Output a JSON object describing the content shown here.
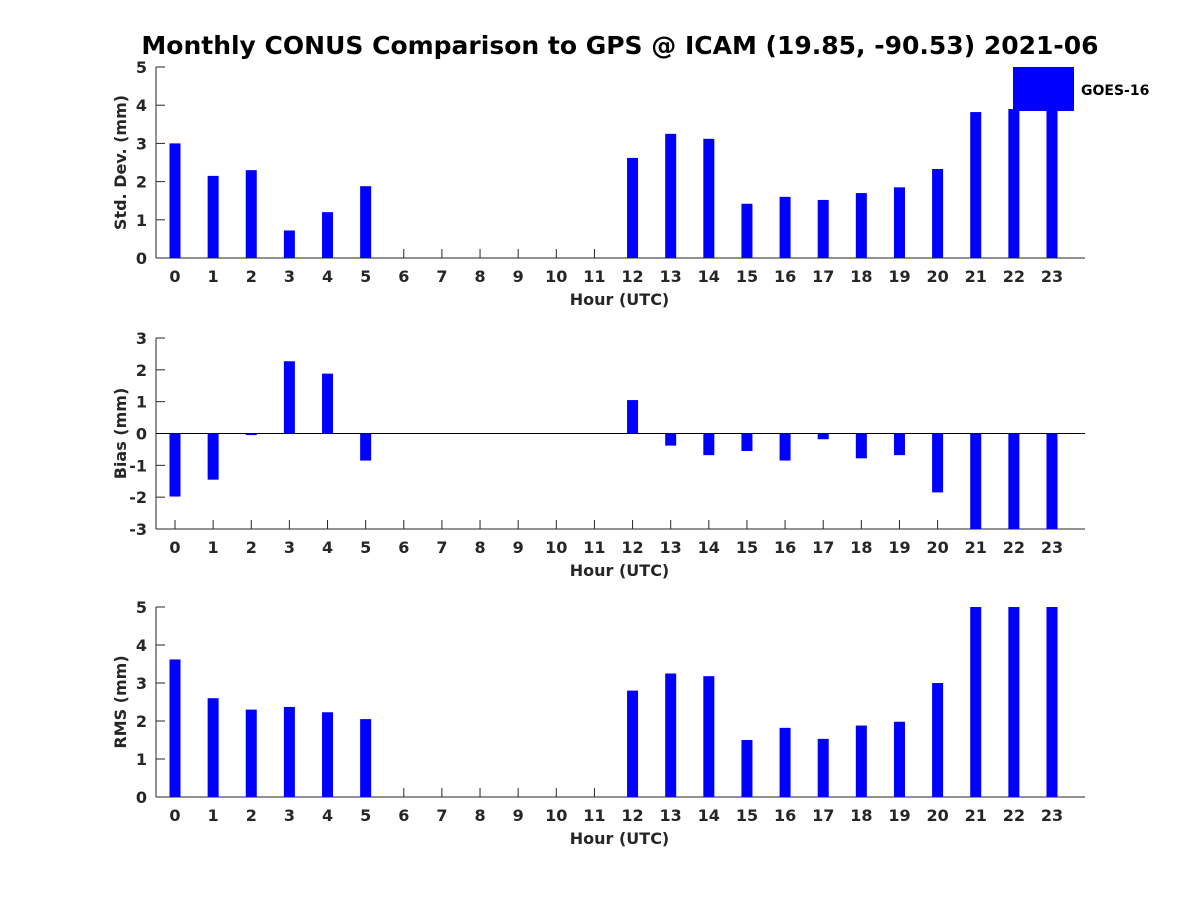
{
  "title": "Monthly CONUS Comparison to GPS @ ICAM (19.85, -90.53) 2021-06",
  "legend": {
    "label": "GOES-16",
    "color": "#0000ff",
    "placement": "top-right"
  },
  "bar_color": "#0000ff",
  "chart_data": [
    {
      "type": "bar",
      "categories": [
        "0",
        "1",
        "2",
        "3",
        "4",
        "5",
        "6",
        "7",
        "8",
        "9",
        "10",
        "11",
        "12",
        "13",
        "14",
        "15",
        "16",
        "17",
        "18",
        "19",
        "20",
        "21",
        "22",
        "23"
      ],
      "series": [
        {
          "name": "GOES-16",
          "values": [
            3.0,
            2.15,
            2.3,
            0.72,
            1.2,
            1.88,
            null,
            null,
            null,
            null,
            null,
            null,
            2.62,
            3.25,
            3.12,
            1.42,
            1.6,
            1.52,
            1.7,
            1.85,
            2.33,
            3.82,
            3.9,
            3.85
          ]
        }
      ],
      "xlabel": "Hour (UTC)",
      "ylabel": "Std. Dev. (mm)",
      "ylim": [
        0,
        5
      ],
      "yticks": [
        "0",
        "1",
        "2",
        "3",
        "4",
        "5"
      ]
    },
    {
      "type": "bar",
      "categories": [
        "0",
        "1",
        "2",
        "3",
        "4",
        "5",
        "6",
        "7",
        "8",
        "9",
        "10",
        "11",
        "12",
        "13",
        "14",
        "15",
        "16",
        "17",
        "18",
        "19",
        "20",
        "21",
        "22",
        "23"
      ],
      "series": [
        {
          "name": "GOES-16",
          "values": [
            -1.98,
            -1.45,
            -0.05,
            2.27,
            1.88,
            -0.85,
            null,
            null,
            null,
            null,
            null,
            null,
            1.05,
            -0.38,
            -0.68,
            -0.55,
            -0.85,
            -0.18,
            -0.78,
            -0.68,
            -1.85,
            -3.0,
            -3.0,
            -3.0
          ]
        }
      ],
      "xlabel": "Hour (UTC)",
      "ylabel": "Bias (mm)",
      "ylim": [
        -3,
        3
      ],
      "yticks": [
        "-3",
        "-2",
        "-1",
        "0",
        "1",
        "2",
        "3"
      ]
    },
    {
      "type": "bar",
      "categories": [
        "0",
        "1",
        "2",
        "3",
        "4",
        "5",
        "6",
        "7",
        "8",
        "9",
        "10",
        "11",
        "12",
        "13",
        "14",
        "15",
        "16",
        "17",
        "18",
        "19",
        "20",
        "21",
        "22",
        "23"
      ],
      "series": [
        {
          "name": "GOES-16",
          "values": [
            3.62,
            2.6,
            2.3,
            2.37,
            2.23,
            2.05,
            null,
            null,
            null,
            null,
            null,
            null,
            2.8,
            3.25,
            3.18,
            1.5,
            1.82,
            1.53,
            1.88,
            1.98,
            3.0,
            5.0,
            5.0,
            5.0
          ]
        }
      ],
      "xlabel": "Hour (UTC)",
      "ylabel": "RMS (mm)",
      "ylim": [
        0,
        5
      ],
      "yticks": [
        "0",
        "1",
        "2",
        "3",
        "4",
        "5"
      ]
    }
  ]
}
